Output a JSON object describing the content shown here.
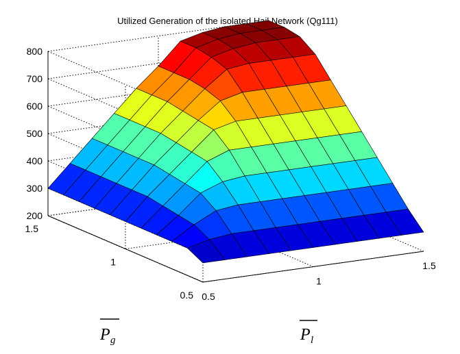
{
  "chart_data": {
    "type": "surface",
    "title": "Utilized Generation of the isolated Hail Network (Qg111)",
    "xlabel": "P",
    "xlabel_sub": "l",
    "ylabel": "P",
    "ylabel_sub": "g",
    "zlabel": "",
    "xlim": [
      0.5,
      1.5
    ],
    "ylim": [
      0.5,
      1.5
    ],
    "zlim": [
      200,
      800
    ],
    "x_ticks": [
      "0.5",
      "1",
      "1.5"
    ],
    "y_ticks": [
      "0.5",
      "1",
      "1.5"
    ],
    "z_ticks": [
      "200",
      "300",
      "400",
      "500",
      "600",
      "700",
      "800"
    ],
    "colormap": "jet",
    "grid": true,
    "surface": {
      "x": [
        0.5,
        0.6,
        0.7,
        0.8,
        0.9,
        1.0,
        1.1,
        1.2,
        1.3,
        1.4,
        1.5
      ],
      "y": [
        0.5,
        0.6,
        0.7,
        0.8,
        0.9,
        1.0,
        1.1,
        1.2,
        1.3,
        1.4,
        1.5
      ],
      "z_rows_by_y": [
        [
          270,
          270,
          270,
          270,
          270,
          270,
          270,
          270,
          270,
          270,
          270
        ],
        [
          300,
          320,
          330,
          330,
          330,
          330,
          330,
          330,
          330,
          330,
          330
        ],
        [
          300,
          350,
          390,
          400,
          400,
          400,
          400,
          400,
          400,
          400,
          400
        ],
        [
          300,
          360,
          430,
          460,
          470,
          470,
          470,
          470,
          470,
          470,
          470
        ],
        [
          300,
          370,
          440,
          510,
          540,
          540,
          540,
          540,
          540,
          540,
          540
        ],
        [
          300,
          380,
          450,
          520,
          590,
          610,
          610,
          610,
          610,
          610,
          610
        ],
        [
          300,
          380,
          460,
          530,
          600,
          660,
          680,
          680,
          680,
          680,
          680
        ],
        [
          300,
          380,
          460,
          540,
          610,
          680,
          740,
          750,
          750,
          750,
          750
        ],
        [
          300,
          380,
          460,
          540,
          620,
          690,
          760,
          780,
          790,
          790,
          790
        ],
        [
          300,
          380,
          460,
          540,
          620,
          690,
          770,
          790,
          800,
          800,
          800
        ],
        [
          300,
          380,
          460,
          540,
          620,
          690,
          770,
          790,
          800,
          800,
          800
        ]
      ]
    }
  }
}
